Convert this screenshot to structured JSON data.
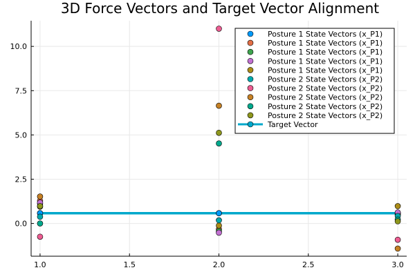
{
  "chart_data": {
    "type": "scatter",
    "title": "3D Force Vectors and Target Vector Alignment",
    "xlabel": "",
    "ylabel": "",
    "xlim": [
      0.95,
      3.05
    ],
    "ylim": [
      -1.85,
      11.45
    ],
    "x_ticks": [
      1.0,
      1.5,
      2.0,
      2.5,
      3.0
    ],
    "x_tick_labels": [
      "1.0",
      "1.5",
      "2.0",
      "2.5",
      "3.0"
    ],
    "y_ticks": [
      0.0,
      2.5,
      5.0,
      7.5,
      10.0
    ],
    "y_tick_labels": [
      "0.0",
      "2.5",
      "5.0",
      "7.5",
      "10.0"
    ],
    "grid": true,
    "legend_position": "top-right",
    "series": [
      {
        "name": "Posture 1 State Vectors (x_P1)",
        "color": "#009AFA",
        "x": [
          1,
          2,
          3
        ],
        "y": [
          0.58,
          0.58,
          0.58
        ]
      },
      {
        "name": "Posture 1 State Vectors (x_P1)",
        "color": "#E36F47",
        "x": [
          1,
          2,
          3
        ],
        "y": [
          1.28,
          -0.32,
          0.52
        ]
      },
      {
        "name": "Posture 1 State Vectors (x_P1)",
        "color": "#3EA44E",
        "x": [
          1,
          2,
          3
        ],
        "y": [
          1.12,
          -0.42,
          0.48
        ]
      },
      {
        "name": "Posture 1 State Vectors (x_P1)",
        "color": "#C271D2",
        "x": [
          1,
          2,
          3
        ],
        "y": [
          1.18,
          -0.52,
          0.62
        ]
      },
      {
        "name": "Posture 1 State Vectors (x_P1)",
        "color": "#AC8D18",
        "x": [
          1,
          2,
          3
        ],
        "y": [
          0.95,
          -0.12,
          0.98
        ]
      },
      {
        "name": "Posture 2 State Vectors (x_P2)",
        "color": "#00A9AD",
        "x": [
          1,
          2,
          3
        ],
        "y": [
          0.38,
          0.18,
          0.42
        ]
      },
      {
        "name": "Posture 2 State Vectors (x_P2)",
        "color": "#ED5D92",
        "x": [
          1,
          2,
          3
        ],
        "y": [
          -0.75,
          11.0,
          -0.92
        ]
      },
      {
        "name": "Posture 2 State Vectors (x_P2)",
        "color": "#C68125",
        "x": [
          1,
          2,
          3
        ],
        "y": [
          1.52,
          6.65,
          -1.42
        ]
      },
      {
        "name": "Posture 2 State Vectors (x_P2)",
        "color": "#00A98D",
        "x": [
          1,
          2,
          3
        ],
        "y": [
          0.0,
          4.52,
          0.22
        ]
      },
      {
        "name": "Posture 2 State Vectors (x_P2)",
        "color": "#8E971D",
        "x": [
          1,
          2,
          3
        ],
        "y": [
          0.98,
          5.12,
          0.12
        ]
      }
    ],
    "line_series": [
      {
        "name": "Target Vector",
        "color": "#00A8CB",
        "x": [
          1,
          2,
          3
        ],
        "y": [
          0.58,
          0.58,
          0.58
        ]
      }
    ]
  }
}
